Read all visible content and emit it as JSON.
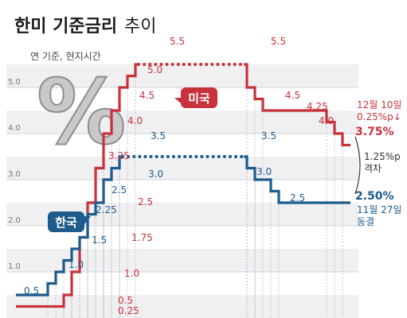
{
  "title": "한미 기준금리",
  "title_suffix": "추이",
  "subtitle": "연 기준, 현지시간",
  "percent_glyph": "%",
  "chart_data": {
    "type": "line",
    "title": "한미 기준금리 추이",
    "subtitle": "연 기준, 현지시간",
    "xlabel": "",
    "ylabel": "",
    "ylim": [
      0,
      5.7
    ],
    "y_ticks": [
      "1.0",
      "2.0",
      "3.0",
      "4.0",
      "5.0"
    ],
    "grid": true,
    "series": [
      {
        "name": "미국",
        "color": "#c8323b",
        "values": [
          0.25,
          0.25,
          0.25,
          0.25,
          0.25,
          0.25,
          0.5,
          1.0,
          1.75,
          2.5,
          3.25,
          4.0,
          4.5,
          5.0,
          5.25,
          5.5,
          5.5,
          5.5,
          5.5,
          5.5,
          5.5,
          5.5,
          5.5,
          5.5,
          5.5,
          5.5,
          5.5,
          5.5,
          5.5,
          5.0,
          4.75,
          4.5,
          4.5,
          4.5,
          4.5,
          4.5,
          4.5,
          4.5,
          4.5,
          4.25,
          4.0,
          3.75
        ],
        "labels": [
          "0.25",
          "0.5",
          "1.0",
          "1.75",
          "2.5",
          "3.25",
          "4.0",
          "4.5",
          "5.0",
          "5.5",
          "5.5",
          "4.5",
          "4.25",
          "4.0",
          "3.75%"
        ],
        "final_note": "12월 10일",
        "change_note": "0.25%p↓"
      },
      {
        "name": "한국",
        "color": "#1d5b8c",
        "values": [
          0.5,
          0.5,
          0.5,
          0.5,
          0.75,
          1.0,
          1.25,
          1.5,
          1.75,
          2.25,
          2.5,
          3.0,
          3.25,
          3.5,
          3.5,
          3.5,
          3.5,
          3.5,
          3.5,
          3.5,
          3.5,
          3.5,
          3.5,
          3.5,
          3.5,
          3.5,
          3.5,
          3.5,
          3.5,
          3.25,
          3.0,
          3.0,
          2.75,
          2.5,
          2.5,
          2.5,
          2.5,
          2.5,
          2.5,
          2.5,
          2.5,
          2.5
        ],
        "labels": [
          "0.5",
          "1.0",
          "1.5",
          "2.25",
          "2.5",
          "3.0",
          "3.5",
          "3.5",
          "3.0",
          "2.5",
          "2.50%"
        ],
        "final_note": "11월 27일",
        "change_note": "동결"
      }
    ],
    "gap": {
      "value": "1.25%p",
      "label": "격차"
    }
  }
}
